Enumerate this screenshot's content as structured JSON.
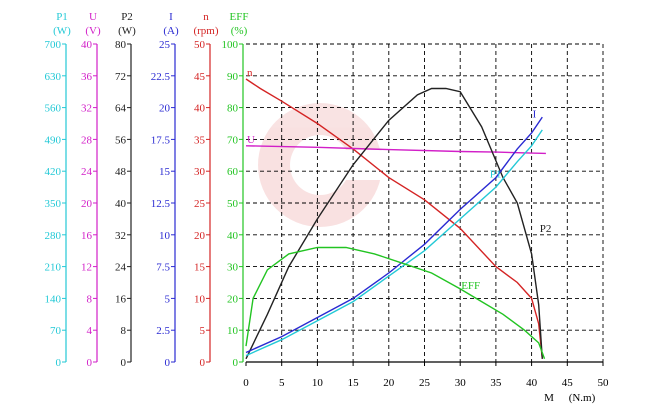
{
  "chart_data": {
    "type": "line",
    "x_label": "M",
    "x_unit": "(N.m)",
    "x_ticks": [
      "0",
      "5",
      "10",
      "15",
      "20",
      "25",
      "30",
      "35",
      "40",
      "45",
      "50"
    ],
    "xlim": [
      0,
      50
    ],
    "grid": true,
    "axes": [
      {
        "id": "P1",
        "name": "P1",
        "unit": "(W)",
        "color": "#23c9d6",
        "max": 700,
        "ticks": [
          "0",
          "70",
          "140",
          "210",
          "280",
          "350",
          "420",
          "490",
          "560",
          "630",
          "700"
        ]
      },
      {
        "id": "U",
        "name": "U",
        "unit": "(V)",
        "color": "#d21fc8",
        "max": 40,
        "ticks": [
          "0",
          "4",
          "8",
          "12",
          "16",
          "20",
          "24",
          "28",
          "32",
          "36",
          "40"
        ]
      },
      {
        "id": "P2",
        "name": "P2",
        "unit": "(W)",
        "color": "#222222",
        "max": 80,
        "ticks": [
          "0",
          "8",
          "16",
          "24",
          "32",
          "40",
          "48",
          "56",
          "64",
          "72",
          "80"
        ]
      },
      {
        "id": "I",
        "name": "I",
        "unit": "(A)",
        "color": "#2a2ad2",
        "max": 25,
        "ticks": [
          "0",
          "2.5",
          "5",
          "7.5",
          "10",
          "12.5",
          "15",
          "17.5",
          "20",
          "22.5",
          "25"
        ]
      },
      {
        "id": "n",
        "name": "n",
        "unit": "(rpm)",
        "color": "#d42424",
        "max": 50,
        "ticks": [
          "0",
          "5",
          "10",
          "15",
          "20",
          "25",
          "30",
          "35",
          "40",
          "45",
          "50"
        ]
      },
      {
        "id": "EFF",
        "name": "EFF",
        "unit": "(%)",
        "color": "#22c422",
        "max": 100,
        "ticks": [
          "0",
          "10",
          "20",
          "30",
          "40",
          "50",
          "60",
          "70",
          "80",
          "90",
          "100"
        ]
      }
    ],
    "series": [
      {
        "name": "n",
        "axis": "n",
        "color": "#d42424",
        "label_at": [
          0,
          89
        ],
        "points": [
          [
            0,
            89
          ],
          [
            2,
            86
          ],
          [
            5,
            82
          ],
          [
            10,
            75
          ],
          [
            15,
            67
          ],
          [
            20,
            58
          ],
          [
            25,
            51
          ],
          [
            30,
            42
          ],
          [
            35,
            30
          ],
          [
            38,
            25
          ],
          [
            40,
            20
          ],
          [
            41,
            12
          ],
          [
            41.5,
            1
          ]
        ]
      },
      {
        "name": "U",
        "axis": "U",
        "color": "#d21fc8",
        "label_at": [
          0,
          68
        ],
        "points": [
          [
            0,
            68
          ],
          [
            10,
            67.5
          ],
          [
            20,
            66.8
          ],
          [
            30,
            66.2
          ],
          [
            35,
            66
          ],
          [
            42,
            65.6
          ]
        ]
      },
      {
        "name": "P2",
        "axis": "P2",
        "color": "#222222",
        "label_at": [
          41,
          40
        ],
        "points": [
          [
            0,
            1
          ],
          [
            3,
            15
          ],
          [
            6,
            30
          ],
          [
            10,
            45
          ],
          [
            15,
            62
          ],
          [
            20,
            76
          ],
          [
            24,
            84
          ],
          [
            26,
            86
          ],
          [
            28,
            86
          ],
          [
            30,
            85
          ],
          [
            33,
            74
          ],
          [
            36,
            58
          ],
          [
            38,
            50
          ],
          [
            40,
            34
          ],
          [
            41,
            18
          ],
          [
            41.5,
            1
          ]
        ]
      },
      {
        "name": "I",
        "axis": "I",
        "color": "#2a2ad2",
        "label_at": [
          40,
          76
        ],
        "points": [
          [
            0,
            3
          ],
          [
            5,
            8
          ],
          [
            10,
            14
          ],
          [
            15,
            20
          ],
          [
            20,
            28
          ],
          [
            25,
            37
          ],
          [
            30,
            48
          ],
          [
            35,
            58
          ],
          [
            38,
            67
          ],
          [
            40,
            72
          ],
          [
            41.5,
            77
          ]
        ]
      },
      {
        "name": "P1",
        "axis": "P1",
        "color": "#23c9d6",
        "label_at": [
          34,
          57
        ],
        "points": [
          [
            0,
            2
          ],
          [
            5,
            7
          ],
          [
            10,
            13
          ],
          [
            15,
            19
          ],
          [
            20,
            27
          ],
          [
            25,
            35
          ],
          [
            30,
            45
          ],
          [
            35,
            55
          ],
          [
            38,
            63
          ],
          [
            40,
            68
          ],
          [
            41.5,
            73
          ]
        ]
      },
      {
        "name": "EFF",
        "axis": "EFF",
        "color": "#22c422",
        "label_at": [
          30,
          22
        ],
        "points": [
          [
            0,
            5
          ],
          [
            1,
            20
          ],
          [
            3,
            29
          ],
          [
            6,
            34
          ],
          [
            10,
            36
          ],
          [
            14,
            36
          ],
          [
            18,
            34
          ],
          [
            22,
            31
          ],
          [
            26,
            28
          ],
          [
            30,
            23
          ],
          [
            33,
            19
          ],
          [
            36,
            15
          ],
          [
            39,
            10
          ],
          [
            41,
            6
          ],
          [
            41.8,
            1
          ]
        ]
      }
    ]
  }
}
